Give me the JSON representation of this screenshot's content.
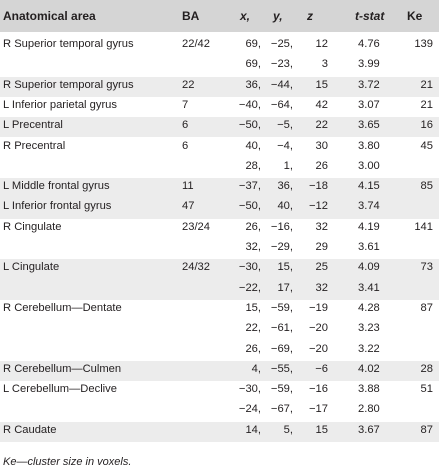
{
  "headers": {
    "area": "Anatomical area",
    "ba": "BA",
    "x": "x,",
    "y": "y,",
    "z": "z",
    "t": "t-stat",
    "ke": "Ke"
  },
  "rows": [
    {
      "area": "R Superior temporal gyrus",
      "ba": "22/42",
      "x": "69,",
      "y": "−25,",
      "z": "12",
      "t": "4.76",
      "ke": "139",
      "shade": false
    },
    {
      "area": "",
      "ba": "",
      "x": "69,",
      "y": "−23,",
      "z": "3",
      "t": "3.99",
      "ke": "",
      "shade": false
    },
    {
      "area": "R Superior temporal gyrus",
      "ba": "22",
      "x": "36,",
      "y": "−44,",
      "z": "15",
      "t": "3.72",
      "ke": "21",
      "shade": true
    },
    {
      "area": "L Inferior parietal gyrus",
      "ba": "7",
      "x": "−40,",
      "y": "−64,",
      "z": "42",
      "t": "3.07",
      "ke": "21",
      "shade": false
    },
    {
      "area": "L Precentral",
      "ba": "6",
      "x": "−50,",
      "y": "−5,",
      "z": "22",
      "t": "3.65",
      "ke": "16",
      "shade": true
    },
    {
      "area": "R Precentral",
      "ba": "6",
      "x": "40,",
      "y": "−4,",
      "z": "30",
      "t": "3.80",
      "ke": "45",
      "shade": false
    },
    {
      "area": "",
      "ba": "",
      "x": "28,",
      "y": "1,",
      "z": "26",
      "t": "3.00",
      "ke": "",
      "shade": false
    },
    {
      "area": "L Middle frontal gyrus",
      "ba": "11",
      "x": "−37,",
      "y": "36,",
      "z": "−18",
      "t": "4.15",
      "ke": "85",
      "shade": true
    },
    {
      "area": "L Inferior frontal gyrus",
      "ba": "47",
      "x": "−50,",
      "y": "40,",
      "z": "−12",
      "t": "3.74",
      "ke": "",
      "shade": true
    },
    {
      "area": "R Cingulate",
      "ba": "23/24",
      "x": "26,",
      "y": "−16,",
      "z": "32",
      "t": "4.19",
      "ke": "141",
      "shade": false
    },
    {
      "area": "",
      "ba": "",
      "x": "32,",
      "y": "−29,",
      "z": "29",
      "t": "3.61",
      "ke": "",
      "shade": false
    },
    {
      "area": "L Cingulate",
      "ba": "24/32",
      "x": "−30,",
      "y": "15,",
      "z": "25",
      "t": "4.09",
      "ke": "73",
      "shade": true
    },
    {
      "area": "",
      "ba": "",
      "x": "−22,",
      "y": "17,",
      "z": "32",
      "t": "3.41",
      "ke": "",
      "shade": true
    },
    {
      "area": "R Cerebellum—Dentate",
      "ba": "",
      "x": "15,",
      "y": "−59,",
      "z": "−19",
      "t": "4.28",
      "ke": "87",
      "shade": false
    },
    {
      "area": "",
      "ba": "",
      "x": "22,",
      "y": "−61,",
      "z": "−20",
      "t": "3.23",
      "ke": "",
      "shade": false
    },
    {
      "area": "",
      "ba": "",
      "x": "26,",
      "y": "−69,",
      "z": "−20",
      "t": "3.22",
      "ke": "",
      "shade": false
    },
    {
      "area": "R Cerebellum—Culmen",
      "ba": "",
      "x": "4,",
      "y": "−55,",
      "z": "−6",
      "t": "4.02",
      "ke": "28",
      "shade": true
    },
    {
      "area": "L Cerebellum—Declive",
      "ba": "",
      "x": "−30,",
      "y": "−59,",
      "z": "−16",
      "t": "3.88",
      "ke": "51",
      "shade": false
    },
    {
      "area": "",
      "ba": "",
      "x": "−24,",
      "y": "−67,",
      "z": "−17",
      "t": "2.80",
      "ke": "",
      "shade": false
    },
    {
      "area": "R Caudate",
      "ba": "",
      "x": "14,",
      "y": "5,",
      "z": "15",
      "t": "3.67",
      "ke": "87",
      "shade": true
    }
  ],
  "footnote": "Ke—cluster size in voxels.",
  "colors": {
    "header_bg": "#d5d5d5",
    "row_shade": "#ececec",
    "text": "#231f20"
  }
}
